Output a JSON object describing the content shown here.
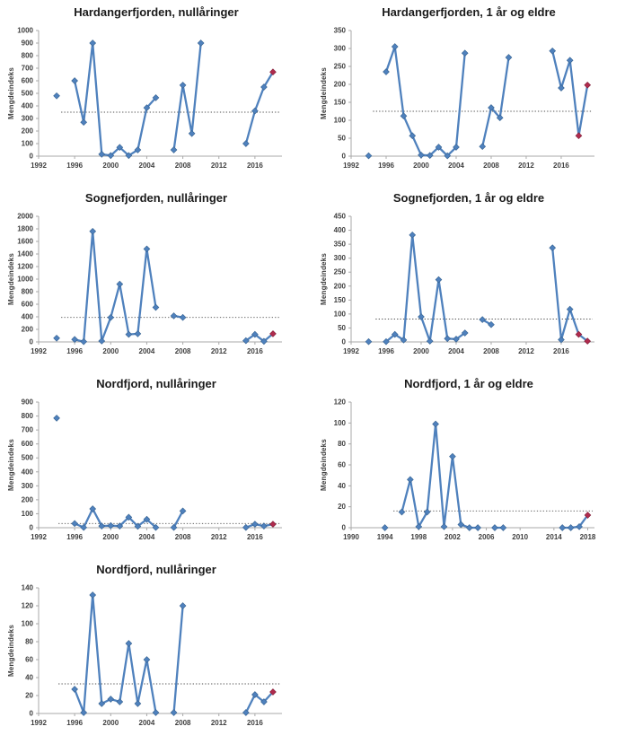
{
  "page": {
    "background": "#ffffff"
  },
  "colors": {
    "line": "#4F81BD",
    "marker": "#4F81BD",
    "marker_edge": "#35618f",
    "red_marker": "#b02b4e",
    "red_marker_edge": "#7e1d36",
    "axis": "#a9a9a9",
    "tick_text": "#3f3f3f",
    "title_text": "#1a1a1a",
    "mean_line": "#4d4d4d"
  },
  "chart_data": [
    {
      "type": "line",
      "title": "Hardangerfjorden, nullåringer",
      "ylabel": "Mengdeindeks",
      "ylim": [
        0,
        1000
      ],
      "ystep": 100,
      "xlim": [
        1992,
        2019
      ],
      "xticks": [
        1992,
        1996,
        2000,
        2004,
        2008,
        2012,
        2016
      ],
      "mean_line": 350,
      "mean_from": 1994.5,
      "grid": false,
      "points": [
        {
          "year": 1994,
          "value": 480
        },
        {
          "year": 1996,
          "value": 600
        },
        {
          "year": 1997,
          "value": 270
        },
        {
          "year": 1998,
          "value": 900
        },
        {
          "year": 1999,
          "value": 15
        },
        {
          "year": 2000,
          "value": 5
        },
        {
          "year": 2001,
          "value": 70
        },
        {
          "year": 2002,
          "value": 5
        },
        {
          "year": 2003,
          "value": 50
        },
        {
          "year": 2004,
          "value": 385
        },
        {
          "year": 2005,
          "value": 465
        },
        {
          "year": 2007,
          "value": 50
        },
        {
          "year": 2008,
          "value": 565
        },
        {
          "year": 2009,
          "value": 180
        },
        {
          "year": 2010,
          "value": 900
        },
        {
          "year": 2015,
          "value": 100
        },
        {
          "year": 2016,
          "value": 360
        },
        {
          "year": 2017,
          "value": 550
        },
        {
          "year": 2018,
          "value": 670,
          "red": true
        }
      ]
    },
    {
      "type": "line",
      "title": "Hardangerfjorden, 1 år og eldre",
      "ylabel": "Mengdeindeks",
      "ylim": [
        0,
        350
      ],
      "ystep": 50,
      "xlim": [
        1992,
        2019.8
      ],
      "xticks": [
        1992,
        1996,
        2000,
        2004,
        2008,
        2012,
        2016
      ],
      "mean_line": 125,
      "mean_from": 1994.5,
      "grid": false,
      "points": [
        {
          "year": 1994,
          "value": 1
        },
        {
          "year": 1996,
          "value": 235
        },
        {
          "year": 1997,
          "value": 305
        },
        {
          "year": 1998,
          "value": 112
        },
        {
          "year": 1999,
          "value": 57
        },
        {
          "year": 2000,
          "value": 3
        },
        {
          "year": 2001,
          "value": 2
        },
        {
          "year": 2002,
          "value": 25
        },
        {
          "year": 2003,
          "value": 1
        },
        {
          "year": 2004,
          "value": 25
        },
        {
          "year": 2005,
          "value": 287
        },
        {
          "year": 2007,
          "value": 27
        },
        {
          "year": 2008,
          "value": 135
        },
        {
          "year": 2009,
          "value": 107
        },
        {
          "year": 2010,
          "value": 275
        },
        {
          "year": 2015,
          "value": 293
        },
        {
          "year": 2016,
          "value": 190
        },
        {
          "year": 2017,
          "value": 267
        },
        {
          "year": 2018,
          "value": 57,
          "red": true
        },
        {
          "year": 2019,
          "value": 198,
          "red": true
        }
      ]
    },
    {
      "type": "line",
      "title": "Sognefjorden, nullåringer",
      "ylabel": "Mengdeindeks",
      "ylim": [
        0,
        2000
      ],
      "ystep": 200,
      "xlim": [
        1992,
        2019
      ],
      "xticks": [
        1992,
        1996,
        2000,
        2004,
        2008,
        2012,
        2016
      ],
      "mean_line": 390,
      "mean_from": 1994.5,
      "grid": false,
      "points": [
        {
          "year": 1994,
          "value": 60
        },
        {
          "year": 1996,
          "value": 40
        },
        {
          "year": 1997,
          "value": 5
        },
        {
          "year": 1998,
          "value": 1760
        },
        {
          "year": 1999,
          "value": 15
        },
        {
          "year": 2000,
          "value": 390
        },
        {
          "year": 2001,
          "value": 920
        },
        {
          "year": 2002,
          "value": 120
        },
        {
          "year": 2003,
          "value": 130
        },
        {
          "year": 2004,
          "value": 1480
        },
        {
          "year": 2005,
          "value": 550
        },
        {
          "year": 2007,
          "value": 415
        },
        {
          "year": 2008,
          "value": 390
        },
        {
          "year": 2015,
          "value": 20
        },
        {
          "year": 2016,
          "value": 120
        },
        {
          "year": 2017,
          "value": 10
        },
        {
          "year": 2018,
          "value": 130,
          "red": true
        }
      ]
    },
    {
      "type": "line",
      "title": "Sognefjorden, 1 år og eldre",
      "ylabel": "Mengdeindeks",
      "ylim": [
        0,
        450
      ],
      "ystep": 50,
      "xlim": [
        1992,
        2019.8
      ],
      "xticks": [
        1992,
        1996,
        2000,
        2004,
        2008,
        2012,
        2016
      ],
      "mean_line": 82,
      "mean_from": 1994.8,
      "grid": false,
      "points": [
        {
          "year": 1994,
          "value": 1
        },
        {
          "year": 1996,
          "value": 1
        },
        {
          "year": 1997,
          "value": 27
        },
        {
          "year": 1998,
          "value": 7
        },
        {
          "year": 1999,
          "value": 383
        },
        {
          "year": 2000,
          "value": 90
        },
        {
          "year": 2001,
          "value": 3
        },
        {
          "year": 2002,
          "value": 223
        },
        {
          "year": 2003,
          "value": 12
        },
        {
          "year": 2004,
          "value": 10
        },
        {
          "year": 2005,
          "value": 32
        },
        {
          "year": 2007,
          "value": 80
        },
        {
          "year": 2008,
          "value": 62
        },
        {
          "year": 2015,
          "value": 337
        },
        {
          "year": 2016,
          "value": 8
        },
        {
          "year": 2017,
          "value": 117
        },
        {
          "year": 2018,
          "value": 27,
          "red": true
        },
        {
          "year": 2019,
          "value": 3,
          "red": true
        }
      ]
    },
    {
      "type": "line",
      "title": "Nordfjord, nullåringer",
      "ylabel": "Mengdeindeks",
      "ylim": [
        0,
        900
      ],
      "ystep": 100,
      "xlim": [
        1992,
        2019
      ],
      "xticks": [
        1992,
        1996,
        2000,
        2004,
        2008,
        2012,
        2016
      ],
      "mean_line": 30,
      "mean_from": 1994.2,
      "grid": false,
      "points": [
        {
          "year": 1994,
          "value": 785
        },
        {
          "year": 1996,
          "value": 30
        },
        {
          "year": 1997,
          "value": 2
        },
        {
          "year": 1998,
          "value": 135
        },
        {
          "year": 1999,
          "value": 12
        },
        {
          "year": 2000,
          "value": 15
        },
        {
          "year": 2001,
          "value": 12
        },
        {
          "year": 2002,
          "value": 75
        },
        {
          "year": 2003,
          "value": 10
        },
        {
          "year": 2004,
          "value": 60
        },
        {
          "year": 2005,
          "value": 2
        },
        {
          "year": 2007,
          "value": 2
        },
        {
          "year": 2008,
          "value": 120
        },
        {
          "year": 2015,
          "value": 2
        },
        {
          "year": 2016,
          "value": 25
        },
        {
          "year": 2017,
          "value": 12
        },
        {
          "year": 2018,
          "value": 25,
          "red": true
        }
      ]
    },
    {
      "type": "line",
      "title": "Nordfjord, 1 år og eldre",
      "ylabel": "Mengdeindeks",
      "ylim": [
        0,
        120
      ],
      "ystep": 20,
      "xlim": [
        1990,
        2018.8
      ],
      "xticks": [
        1990,
        1994,
        1998,
        2002,
        2006,
        2010,
        2014,
        2018
      ],
      "mean_line": 16,
      "mean_from": 1995,
      "grid": false,
      "points": [
        {
          "year": 1994,
          "value": 0
        },
        {
          "year": 1996,
          "value": 15
        },
        {
          "year": 1997,
          "value": 46
        },
        {
          "year": 1998,
          "value": 1
        },
        {
          "year": 1999,
          "value": 15
        },
        {
          "year": 2000,
          "value": 99
        },
        {
          "year": 2001,
          "value": 1
        },
        {
          "year": 2002,
          "value": 68
        },
        {
          "year": 2003,
          "value": 3
        },
        {
          "year": 2004,
          "value": 0
        },
        {
          "year": 2005,
          "value": 0
        },
        {
          "year": 2007,
          "value": 0
        },
        {
          "year": 2008,
          "value": 0
        },
        {
          "year": 2015,
          "value": 0
        },
        {
          "year": 2016,
          "value": 0
        },
        {
          "year": 2017,
          "value": 1
        },
        {
          "year": 2018,
          "value": 12,
          "red": true
        }
      ]
    },
    {
      "type": "line",
      "title": "Nordfjord, nullåringer",
      "ylabel": "Mengdeindeks",
      "ylim": [
        0,
        140
      ],
      "ystep": 20,
      "xlim": [
        1992,
        2019
      ],
      "xticks": [
        1992,
        1996,
        2000,
        2004,
        2008,
        2012,
        2016
      ],
      "mean_line": 33,
      "mean_from": 1994.2,
      "grid": false,
      "points": [
        {
          "year": 1996,
          "value": 27
        },
        {
          "year": 1997,
          "value": 1
        },
        {
          "year": 1998,
          "value": 132
        },
        {
          "year": 1999,
          "value": 11
        },
        {
          "year": 2000,
          "value": 16
        },
        {
          "year": 2001,
          "value": 13
        },
        {
          "year": 2002,
          "value": 78
        },
        {
          "year": 2003,
          "value": 11
        },
        {
          "year": 2004,
          "value": 60
        },
        {
          "year": 2005,
          "value": 1
        },
        {
          "year": 2007,
          "value": 1
        },
        {
          "year": 2008,
          "value": 120
        },
        {
          "year": 2015,
          "value": 1
        },
        {
          "year": 2016,
          "value": 21
        },
        {
          "year": 2017,
          "value": 13
        },
        {
          "year": 2018,
          "value": 24,
          "red": true
        }
      ]
    }
  ]
}
